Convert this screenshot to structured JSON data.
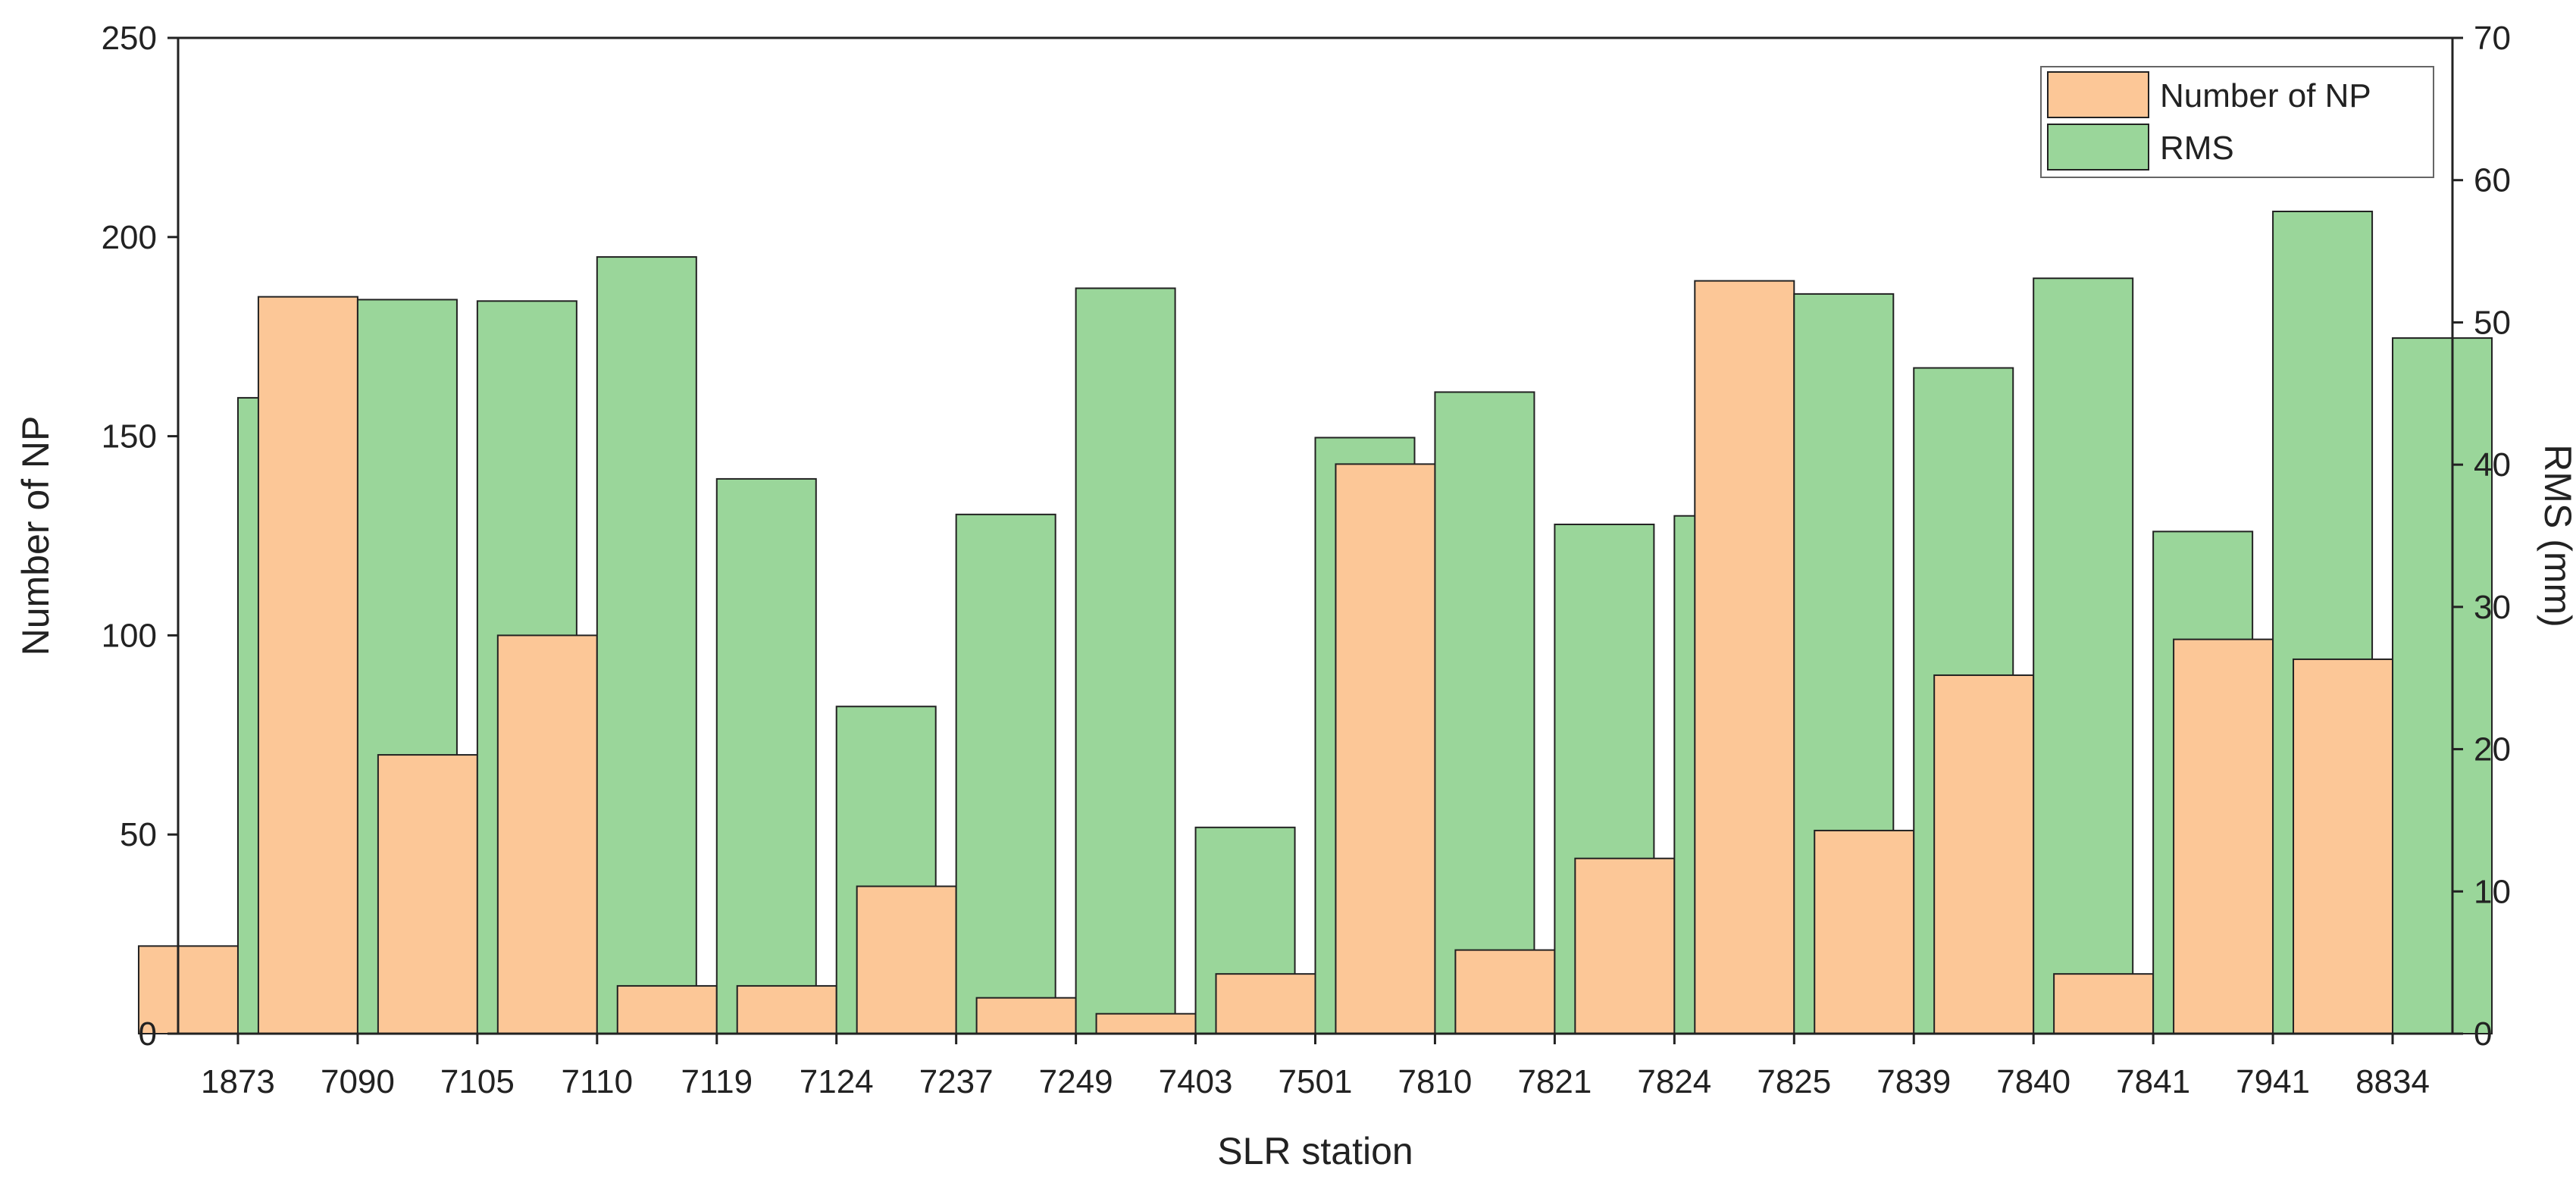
{
  "chart_data": {
    "type": "bar",
    "xlabel": "SLR station",
    "ylabel_left": "Number of NP",
    "ylabel_right": "RMS (mm)",
    "ylim_left": [
      0,
      250
    ],
    "ylim_right": [
      0,
      70
    ],
    "yticks_left": [
      0,
      50,
      100,
      150,
      200,
      250
    ],
    "yticks_right": [
      0,
      10,
      20,
      30,
      40,
      50,
      60,
      70
    ],
    "grid": false,
    "legend_position": "top-right",
    "categories": [
      "1873",
      "7090",
      "7105",
      "7110",
      "7119",
      "7124",
      "7237",
      "7249",
      "7403",
      "7501",
      "7810",
      "7821",
      "7824",
      "7825",
      "7839",
      "7840",
      "7841",
      "7941",
      "8834"
    ],
    "series": [
      {
        "name": "Number of NP",
        "axis": "left",
        "color": "#FCC797",
        "values": [
          22,
          185,
          70,
          100,
          12,
          12,
          37,
          9,
          5,
          15,
          143,
          21,
          44,
          189,
          51,
          90,
          15,
          99,
          94
        ]
      },
      {
        "name": "RMS",
        "axis": "right",
        "color": "#9AD69A",
        "values": [
          44.7,
          51.6,
          51.5,
          54.6,
          39.0,
          23.0,
          36.5,
          52.4,
          14.5,
          41.9,
          45.1,
          35.8,
          36.4,
          52.0,
          46.8,
          53.1,
          35.3,
          57.8,
          48.9
        ]
      }
    ]
  }
}
